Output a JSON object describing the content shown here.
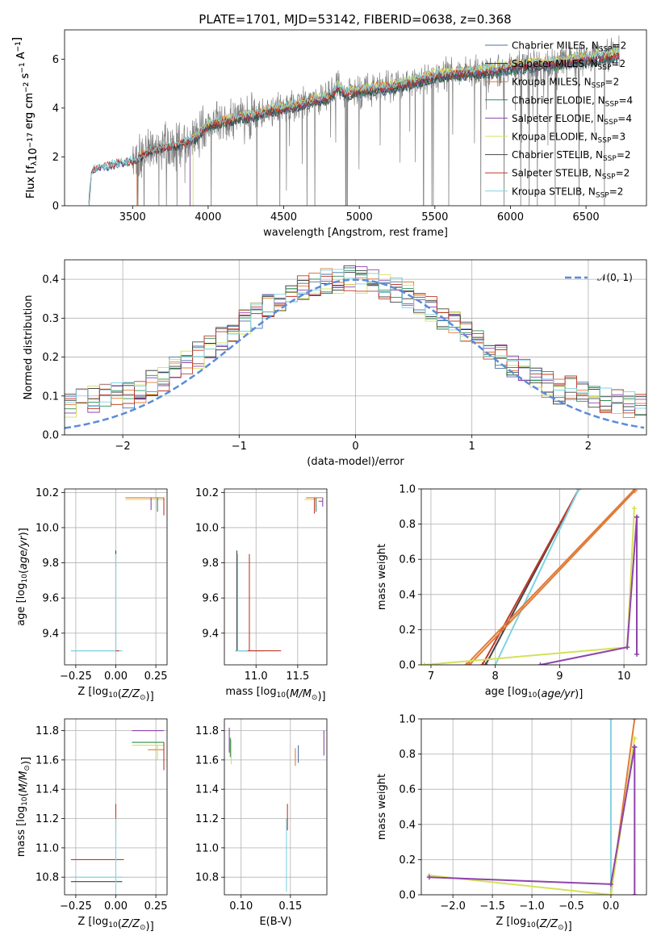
{
  "title": "PLATE=1701, MJD=53142, FIBERID=0638, z=0.368",
  "colors": {
    "Chabrier MILES": "#4a6fa8",
    "Salpeter MILES": "#2b2b2b",
    "Kroupa MILES": "#e07b39",
    "Chabrier ELODIE": "#2e8b57",
    "Salpeter ELODIE": "#8e44ad",
    "Kroupa ELODIE": "#d4e157",
    "Chabrier STELIB": "#444444",
    "Salpeter STELIB": "#c0392b",
    "Kroupa STELIB": "#7fd3e0",
    "data": "#808080",
    "gaussian": "#5b8bd9"
  },
  "legend": [
    {
      "name": "Chabrier MILES",
      "label": "Chabrier MILES, N",
      "sub": "SSP",
      "n": "=2"
    },
    {
      "name": "Salpeter MILES",
      "label": "Salpeter MILES, N",
      "sub": "SSP",
      "n": "=2"
    },
    {
      "name": "Kroupa MILES",
      "label": "Kroupa MILES, N",
      "sub": "SSP",
      "n": "=2"
    },
    {
      "name": "Chabrier ELODIE",
      "label": "Chabrier ELODIE, N",
      "sub": "SSP",
      "n": "=4"
    },
    {
      "name": "Salpeter ELODIE",
      "label": "Salpeter ELODIE, N",
      "sub": "SSP",
      "n": "=4"
    },
    {
      "name": "Kroupa ELODIE",
      "label": "Kroupa ELODIE, N",
      "sub": "SSP",
      "n": "=3"
    },
    {
      "name": "Chabrier STELIB",
      "label": "Chabrier STELIB, N",
      "sub": "SSP",
      "n": "=2"
    },
    {
      "name": "Salpeter STELIB",
      "label": "Salpeter STELIB, N",
      "sub": "SSP",
      "n": "=2"
    },
    {
      "name": "Kroupa STELIB",
      "label": "Kroupa STELIB, N",
      "sub": "SSP",
      "n": "=2"
    }
  ],
  "chart_data": [
    {
      "id": "spectrum",
      "type": "line",
      "xlabel": "wavelength [Angstrom, rest frame]",
      "ylabel": "Flux [f",
      "ylabel_parts": [
        "Flux [f",
        "λ",
        "10",
        "−17",
        " erg cm",
        "−2",
        " s",
        "−1",
        " A",
        "−1",
        "]"
      ],
      "xlim": [
        3050,
        6900
      ],
      "ylim": [
        0,
        7.2
      ],
      "xticks": [
        3500,
        4000,
        4500,
        5000,
        5500,
        6000,
        6500
      ],
      "yticks": [
        0,
        2,
        4,
        6
      ],
      "grid": false,
      "legend_position": "right",
      "model_anchor_points": {
        "x": [
          3210,
          3230,
          3300,
          3400,
          3500,
          3550,
          3600,
          3700,
          3800,
          3900,
          3950,
          4000,
          4100,
          4200,
          4300,
          4400,
          4500,
          4600,
          4700,
          4800,
          4860,
          4900,
          5000,
          5100,
          5200,
          5300,
          5400,
          5500,
          5600,
          5700,
          5800,
          5900,
          6000,
          6100,
          6200,
          6300,
          6400,
          6500,
          6600,
          6700
        ],
        "y": [
          0,
          1.45,
          1.6,
          1.75,
          1.85,
          2.0,
          2.2,
          2.4,
          2.5,
          2.7,
          3.0,
          3.3,
          3.45,
          3.6,
          3.7,
          3.9,
          4.0,
          4.15,
          4.3,
          4.45,
          4.9,
          4.6,
          4.7,
          4.8,
          4.85,
          5.0,
          5.15,
          5.35,
          5.4,
          5.45,
          5.5,
          5.55,
          5.7,
          5.75,
          5.8,
          5.85,
          5.95,
          6.05,
          6.1,
          6.2
        ]
      },
      "data_range": [
        3500,
        6720
      ]
    },
    {
      "id": "residuals",
      "type": "line",
      "xlabel": "(data-model)/error",
      "ylabel": "Normed distribution",
      "xlim": [
        -2.5,
        2.5
      ],
      "ylim": [
        0,
        0.45
      ],
      "xticks": [
        -2,
        -1,
        0,
        1,
        2
      ],
      "yticks": [
        0.0,
        0.1,
        0.2,
        0.3,
        0.4
      ],
      "grid": true,
      "legend": "𝒩(0, 1)",
      "legend_position": "top-right",
      "gaussian": {
        "mu": 0,
        "sigma": 1
      }
    },
    {
      "id": "age_vs_Z",
      "type": "scatter",
      "xlabel": "Z [log",
      "xlabel_parts": [
        "Z [log",
        "10",
        "(",
        "Z/Z",
        "⊙",
        ")]"
      ],
      "ylabel_parts": [
        "age  [log",
        "10",
        "(",
        "age/yr",
        ")]"
      ],
      "xlim": [
        -0.32,
        0.32
      ],
      "ylim": [
        9.22,
        10.22
      ],
      "xticks": [
        -0.25,
        0.0,
        0.25
      ],
      "yticks": [
        9.4,
        9.6,
        9.8,
        10.0,
        10.2
      ],
      "grid": true,
      "points": [
        {
          "model": "Chabrier MILES",
          "x": -0.28,
          "x2": 0.04,
          "y": 9.3
        },
        {
          "model": "Kroupa STELIB",
          "x": -0.28,
          "x2": 0.04,
          "y": 9.3
        },
        {
          "model": "Salpeter STELIB",
          "x": 0.0,
          "x2": 0.02,
          "y": 9.3
        },
        {
          "model": "Chabrier STELIB",
          "x": 0.0,
          "y": 9.3,
          "y2": 9.87
        },
        {
          "model": "Kroupa STELIB",
          "x": 0.0,
          "y": 9.3,
          "y2": 9.85
        },
        {
          "model": "Kroupa MILES",
          "x": 0.06,
          "x2": 0.3,
          "y": 10.17
        },
        {
          "model": "Kroupa ELODIE",
          "x": 0.06,
          "x2": 0.3,
          "y": 10.16
        },
        {
          "model": "Salpeter ELODIE",
          "x": 0.22,
          "y": 10.17,
          "y2": 10.1
        },
        {
          "model": "Chabrier ELODIE",
          "x": 0.26,
          "y": 10.17,
          "y2": 10.09
        },
        {
          "model": "Salpeter STELIB",
          "x": 0.3,
          "y": 10.17,
          "y2": 10.07
        }
      ]
    },
    {
      "id": "age_vs_mass",
      "type": "scatter",
      "xlabel_parts": [
        "mass [log",
        "10",
        "(",
        "M/M",
        "⊙",
        ")]"
      ],
      "xlim": [
        10.62,
        11.85
      ],
      "ylim": [
        9.22,
        10.22
      ],
      "xticks": [
        11.0,
        11.5
      ],
      "yticks": [
        9.4,
        9.6,
        9.8,
        10.0,
        10.2
      ],
      "grid": true,
      "points": [
        {
          "model": "Chabrier MILES",
          "x": 10.75,
          "x2": 11.1,
          "y": 9.3
        },
        {
          "model": "Salpeter STELIB",
          "x": 10.78,
          "x2": 11.3,
          "y": 9.3
        },
        {
          "model": "Kroupa STELIB",
          "x": 10.75,
          "x2": 10.9,
          "y": 9.3
        },
        {
          "model": "Chabrier STELIB",
          "x": 10.77,
          "y": 9.3,
          "y2": 9.87
        },
        {
          "model": "Kroupa STELIB",
          "x": 10.78,
          "y": 9.3,
          "y2": 9.85
        },
        {
          "model": "Salpeter STELIB",
          "x": 10.92,
          "y": 9.3,
          "y2": 9.85
        },
        {
          "model": "Kroupa MILES",
          "x": 11.6,
          "x2": 11.8,
          "y": 10.17
        },
        {
          "model": "Kroupa ELODIE",
          "x": 11.58,
          "x2": 11.72,
          "y": 10.16
        },
        {
          "model": "Salpeter ELODIE",
          "x": 11.75,
          "x2": 11.8,
          "y": 10.15
        },
        {
          "model": "Chabrier ELODIE",
          "x": 11.72,
          "y": 10.17,
          "y2": 10.09
        },
        {
          "model": "Salpeter STELIB",
          "x": 11.7,
          "y": 10.17,
          "y2": 10.08
        },
        {
          "model": "Salpeter ELODIE",
          "x": 11.8,
          "y": 10.17,
          "y2": 10.12
        }
      ]
    },
    {
      "id": "massweight_vs_age",
      "type": "line",
      "xlabel_parts": [
        "age  [log",
        "10",
        "(",
        "age/yr",
        ")]"
      ],
      "ylabel": "mass weight",
      "xlim": [
        6.85,
        10.35
      ],
      "ylim": [
        0,
        1.0
      ],
      "xticks": [
        7,
        8,
        9,
        10
      ],
      "yticks": [
        0.0,
        0.2,
        0.4,
        0.6,
        0.8,
        1.0
      ],
      "grid": true,
      "series": [
        {
          "model": "Chabrier STELIB",
          "x": [
            7.85,
            9.3
          ],
          "y": [
            0.0,
            1.0
          ]
        },
        {
          "model": "Salpeter STELIB",
          "x": [
            7.8,
            9.3
          ],
          "y": [
            0.0,
            1.0
          ]
        },
        {
          "model": "Kroupa STELIB",
          "x": [
            8.0,
            9.3
          ],
          "y": [
            0.0,
            1.0
          ]
        },
        {
          "model": "Kroupa MILES",
          "x": [
            7.55,
            10.17
          ],
          "y": [
            0.0,
            1.0
          ]
        },
        {
          "model": "Kroupa MILES",
          "x": [
            7.6,
            10.17
          ],
          "y": [
            0.0,
            0.99
          ]
        },
        {
          "model": "Kroupa ELODIE",
          "x": [
            6.9,
            10.05,
            10.16
          ],
          "y": [
            0.0,
            0.1,
            0.89
          ]
        },
        {
          "model": "Salpeter ELODIE",
          "x": [
            8.7,
            10.05,
            10.2
          ],
          "y": [
            0.0,
            0.1,
            0.84
          ]
        },
        {
          "model": "Salpeter ELODIE",
          "x": [
            10.2,
            10.2
          ],
          "y": [
            0.06,
            0.84
          ]
        }
      ]
    },
    {
      "id": "mass_vs_Z",
      "type": "scatter",
      "xlabel_parts": [
        "Z [log",
        "10",
        "(",
        "Z/Z",
        "⊙",
        ")]"
      ],
      "ylabel_parts": [
        "mass [log",
        "10",
        "(",
        "M/M",
        "⊙",
        ")]"
      ],
      "xlim": [
        -0.32,
        0.32
      ],
      "ylim": [
        10.68,
        11.88
      ],
      "xticks": [
        -0.25,
        0.0,
        0.25
      ],
      "yticks": [
        10.8,
        11.0,
        11.2,
        11.4,
        11.6,
        11.8
      ],
      "grid": true,
      "points": [
        {
          "model": "Salpeter STELIB",
          "x": -0.28,
          "x2": 0.05,
          "y": 10.92
        },
        {
          "model": "Kroupa STELIB",
          "x": -0.28,
          "x2": 0.04,
          "y": 10.8
        },
        {
          "model": "Chabrier STELIB",
          "x": -0.28,
          "x2": 0.04,
          "y": 10.77
        },
        {
          "model": "Salpeter STELIB",
          "x": 0.0,
          "y": 11.1,
          "y2": 11.3
        },
        {
          "model": "Kroupa STELIB",
          "x": 0.0,
          "y": 10.7,
          "y2": 11.2
        },
        {
          "model": "Salpeter ELODIE",
          "x": 0.1,
          "x2": 0.3,
          "y": 11.8
        },
        {
          "model": "Chabrier ELODIE",
          "x": 0.1,
          "x2": 0.3,
          "y": 11.72
        },
        {
          "model": "Kroupa ELODIE",
          "x": 0.1,
          "x2": 0.3,
          "y": 11.7
        },
        {
          "model": "Kroupa MILES",
          "x": 0.2,
          "x2": 0.3,
          "y": 11.67
        },
        {
          "model": "Salpeter STELIB",
          "x": 0.3,
          "y": 11.72,
          "y2": 11.53
        },
        {
          "model": "Kroupa ELODIE",
          "x": 0.26,
          "y": 11.7,
          "y2": 11.6
        }
      ]
    },
    {
      "id": "mass_vs_ebv",
      "type": "scatter",
      "xlabel": "E(B-V)",
      "xlim": [
        0.083,
        0.187
      ],
      "ylim": [
        10.68,
        11.88
      ],
      "xticks": [
        0.1,
        0.15
      ],
      "yticks": [
        10.8,
        11.0,
        11.2,
        11.4,
        11.6,
        11.8
      ],
      "grid": true,
      "points": [
        {
          "model": "Salpeter ELODIE",
          "x": 0.088,
          "y": 11.65,
          "y2": 11.82
        },
        {
          "model": "Kroupa ELODIE",
          "x": 0.09,
          "y": 11.57,
          "y2": 11.74
        },
        {
          "model": "Chabrier ELODIE",
          "x": 0.089,
          "y": 11.62,
          "y2": 11.75
        },
        {
          "model": "Salpeter STELIB",
          "x": 0.147,
          "y": 11.12,
          "y2": 11.3
        },
        {
          "model": "Kroupa STELIB",
          "x": 0.146,
          "y": 10.7,
          "y2": 11.2
        },
        {
          "model": "Kroupa MILES",
          "x": 0.155,
          "y": 11.56,
          "y2": 11.68
        },
        {
          "model": "Chabrier MILES",
          "x": 0.158,
          "y": 11.58,
          "y2": 11.7
        },
        {
          "model": "Salpeter ELODIE",
          "x": 0.184,
          "y": 11.63,
          "y2": 11.8
        }
      ]
    },
    {
      "id": "massweight_vs_Z",
      "type": "line",
      "xlabel_parts": [
        "Z [log",
        "10",
        "(",
        "Z/Z",
        "⊙",
        ")]"
      ],
      "ylabel": "mass weight",
      "xlim": [
        -2.4,
        0.45
      ],
      "ylim": [
        0,
        1.0
      ],
      "xticks": [
        -2.0,
        -1.5,
        -1.0,
        -0.5,
        0.0
      ],
      "yticks": [
        0.0,
        0.2,
        0.4,
        0.6,
        0.8,
        1.0
      ],
      "grid": true,
      "series": [
        {
          "model": "Kroupa STELIB",
          "x": [
            0.0,
            0.0
          ],
          "y": [
            0.0,
            1.0
          ]
        },
        {
          "model": "Kroupa MILES",
          "x": [
            0.0,
            0.3
          ],
          "y": [
            0.0,
            1.0
          ]
        },
        {
          "model": "Kroupa ELODIE",
          "x": [
            -2.3,
            0.0,
            0.3
          ],
          "y": [
            0.11,
            0.0,
            0.89
          ]
        },
        {
          "model": "Salpeter ELODIE",
          "x": [
            -2.3,
            0.0,
            0.3
          ],
          "y": [
            0.1,
            0.06,
            0.84
          ]
        },
        {
          "model": "Salpeter ELODIE",
          "x": [
            0.3,
            0.3
          ],
          "y": [
            0.0,
            0.84
          ]
        }
      ]
    }
  ]
}
